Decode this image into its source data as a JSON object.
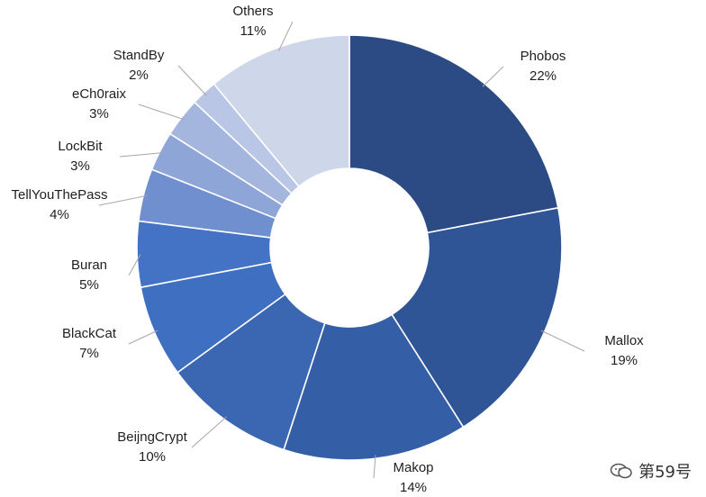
{
  "chart_data": {
    "type": "pie",
    "donut": true,
    "categories": [
      "Phobos",
      "Mallox",
      "Makop",
      "BeijngCrypt",
      "BlackCat",
      "Buran",
      "TellYouThePass",
      "LockBit",
      "eCh0raix",
      "StandBy",
      "Others"
    ],
    "values": [
      22,
      19,
      14,
      10,
      7,
      5,
      4,
      3,
      3,
      2,
      11
    ],
    "value_labels": [
      "22%",
      "19%",
      "14%",
      "10%",
      "7%",
      "5%",
      "4%",
      "3%",
      "3%",
      "2%",
      "11%"
    ],
    "colors": [
      "#2c4a83",
      "#2f5597",
      "#345ea6",
      "#3a66b2",
      "#3e6fc1",
      "#4472c4",
      "#6f8fcf",
      "#8ea5d8",
      "#a5b6de",
      "#b9c6e6",
      "#ced6ea"
    ],
    "title": "",
    "legend": "none"
  },
  "watermark": {
    "text": "第59号",
    "icon": "chat-bubble-icon"
  }
}
